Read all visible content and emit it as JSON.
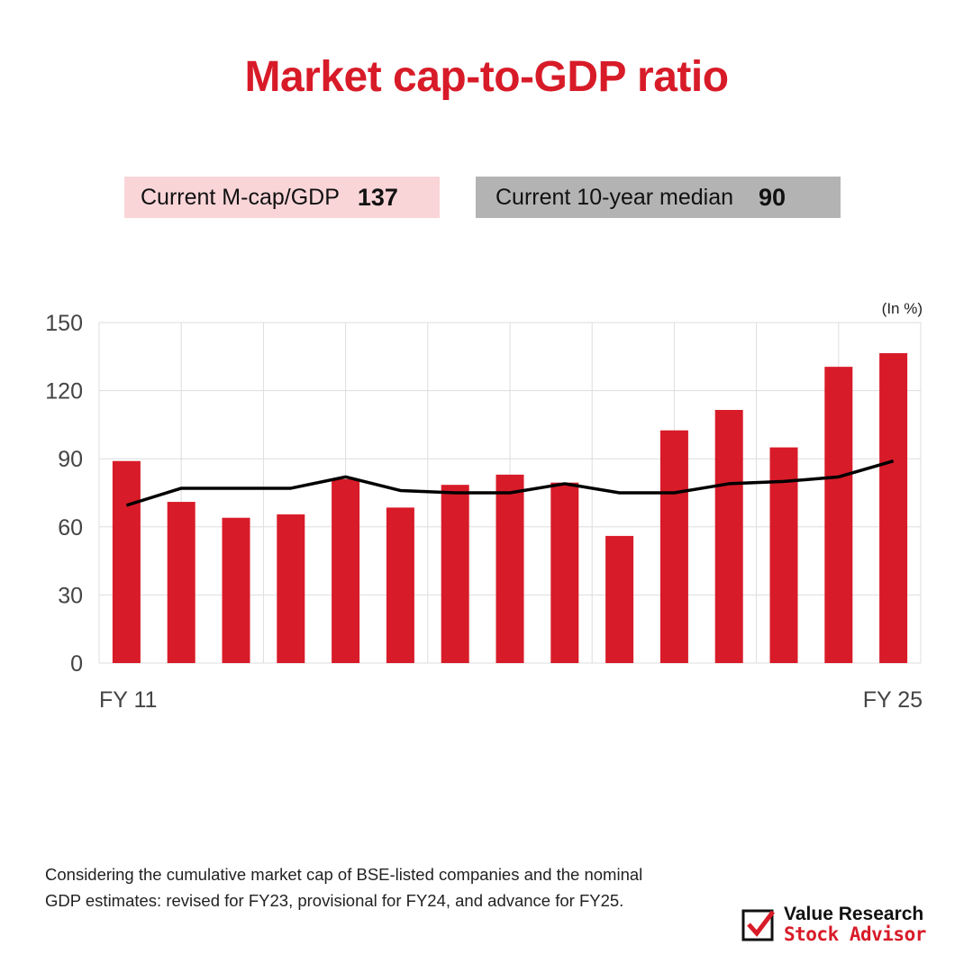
{
  "title": "Market cap-to-GDP ratio",
  "kpis": {
    "current": {
      "label": "Current M-cap/GDP",
      "value": "137"
    },
    "median": {
      "label": "Current 10-year median",
      "value": "90"
    }
  },
  "colors": {
    "accent": "#d81b28",
    "line": "#000000",
    "grid": "#dddddd",
    "current_bg": "#f9d5d8",
    "median_bg": "#b3b3b3"
  },
  "chart_data": {
    "type": "bar",
    "unit_label": "(In %)",
    "categories": [
      "FY 11",
      "",
      "",
      "",
      "",
      "",
      "",
      "",
      "",
      "",
      "",
      "",
      "",
      "",
      "FY 25"
    ],
    "series": [
      {
        "type": "bar",
        "values": [
          89,
          71,
          64,
          65.5,
          81,
          68.5,
          78.5,
          83,
          79.5,
          56,
          102.5,
          111.5,
          95,
          130.5,
          136.5
        ]
      },
      {
        "type": "line",
        "values": [
          69.5,
          77,
          77,
          77,
          82,
          76,
          75,
          75,
          79,
          75,
          75,
          79,
          80,
          82,
          89
        ]
      }
    ],
    "ylim": [
      0,
      150
    ],
    "yticks": [
      0,
      30,
      60,
      90,
      120,
      150
    ],
    "grid": true,
    "xlabel": "",
    "ylabel": ""
  },
  "footnote": "Considering the cumulative market cap of BSE-listed companies and the nominal GDP estimates: revised for FY23, provisional for FY24, and advance for FY25.",
  "brand": {
    "line1": "Value Research",
    "line2": "Stock Advisor",
    "icon": "checkmark-box-icon"
  }
}
